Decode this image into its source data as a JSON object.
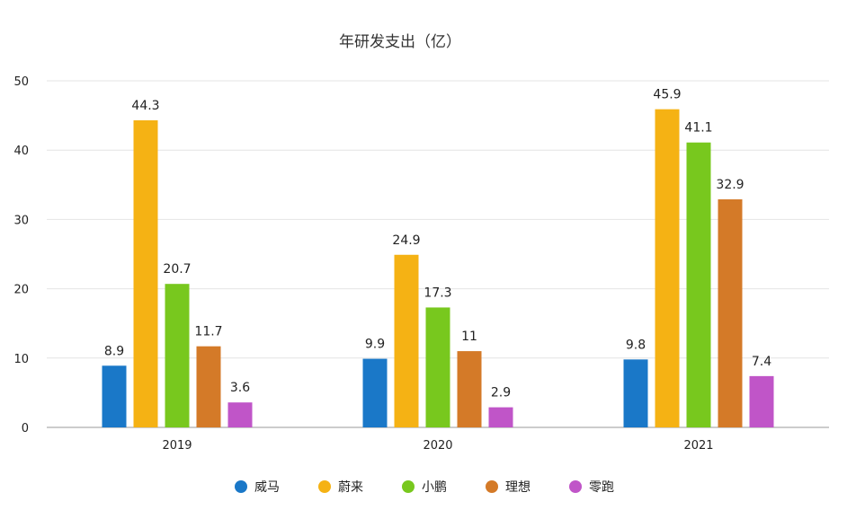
{
  "chart_data": {
    "type": "bar",
    "title": "年研发支出（亿）",
    "xlabel": "",
    "ylabel": "",
    "categories": [
      "2019",
      "2020",
      "2021"
    ],
    "ylim": [
      0,
      50
    ],
    "yticks": [
      0,
      10,
      20,
      30,
      40,
      50
    ],
    "grid": true,
    "legend_position": "bottom",
    "series": [
      {
        "name": "威马",
        "color": "#1a78c8",
        "values": [
          8.9,
          9.9,
          9.8
        ]
      },
      {
        "name": "蔚来",
        "color": "#f5b214",
        "values": [
          44.3,
          24.9,
          45.9
        ]
      },
      {
        "name": "小鹏",
        "color": "#78c81e",
        "values": [
          20.7,
          17.3,
          41.1
        ]
      },
      {
        "name": "理想",
        "color": "#d47a28",
        "values": [
          11.7,
          11,
          32.9
        ]
      },
      {
        "name": "零跑",
        "color": "#c055c8",
        "values": [
          3.6,
          2.9,
          7.4
        ]
      }
    ]
  }
}
